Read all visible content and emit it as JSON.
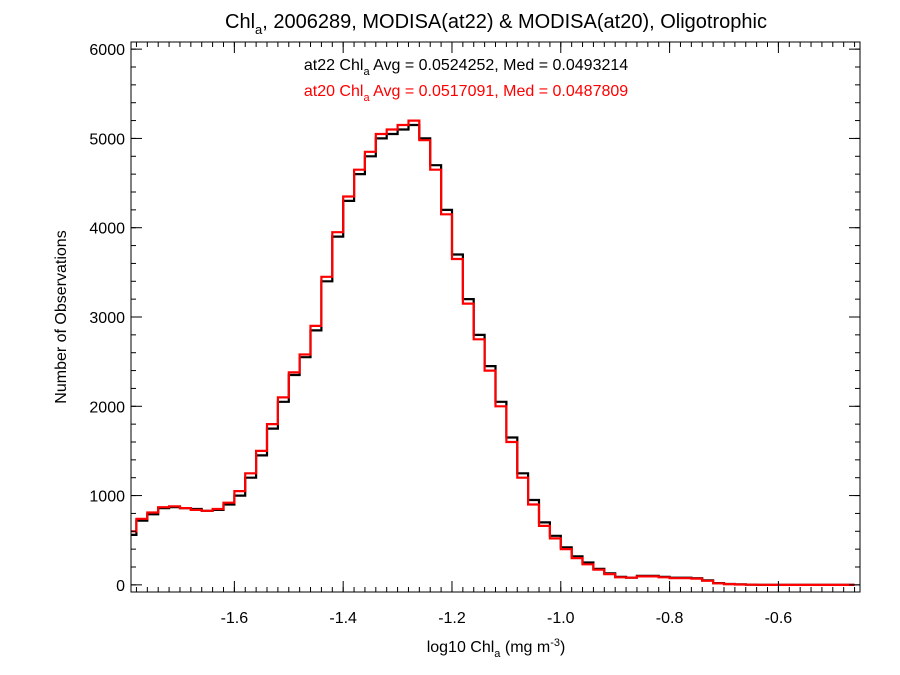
{
  "chart_data": {
    "type": "line",
    "step": true,
    "title": {
      "pre": "Chl",
      "sub": "a",
      "post": ", 2006289, MODISA(at22) & MODISA(at20), Oligotrophic"
    },
    "xlabel": {
      "pre": "log10 Chl",
      "sub": "a",
      "mid": " (mg m",
      "sup": "-3",
      "post": ")"
    },
    "ylabel": "Number of Observations",
    "xlim": [
      -1.79,
      -0.45
    ],
    "ylim": [
      -80,
      6080
    ],
    "xticks": [
      -1.6,
      -1.4,
      -1.2,
      -1.0,
      -0.8,
      -0.6
    ],
    "xtick_labels": [
      "-1.6",
      "-1.4",
      "-1.2",
      "-1.0",
      "-0.8",
      "-0.6"
    ],
    "yticks": [
      0,
      1000,
      2000,
      3000,
      4000,
      5000,
      6000
    ],
    "ytick_labels": [
      "0",
      "1000",
      "2000",
      "3000",
      "4000",
      "5000",
      "6000"
    ],
    "x_minor_step": 0.02,
    "y_minor_step": 200,
    "grid": false,
    "annotations": [
      {
        "pre": "at22 Chl",
        "sub": "a",
        "post": " Avg = 0.0524252, Med = 0.0493214",
        "color": "#000000"
      },
      {
        "pre": "at20 Chl",
        "sub": "a",
        "post": " Avg = 0.0517091, Med = 0.0487809",
        "color": "#ff0000"
      }
    ],
    "series": [
      {
        "color": "#000000",
        "points": [
          [
            -1.79,
            560
          ],
          [
            -1.77,
            720
          ],
          [
            -1.75,
            790
          ],
          [
            -1.73,
            860
          ],
          [
            -1.71,
            870
          ],
          [
            -1.69,
            860
          ],
          [
            -1.67,
            850
          ],
          [
            -1.65,
            830
          ],
          [
            -1.63,
            840
          ],
          [
            -1.61,
            900
          ],
          [
            -1.59,
            1000
          ],
          [
            -1.57,
            1200
          ],
          [
            -1.55,
            1450
          ],
          [
            -1.53,
            1750
          ],
          [
            -1.51,
            2050
          ],
          [
            -1.49,
            2350
          ],
          [
            -1.47,
            2550
          ],
          [
            -1.45,
            2850
          ],
          [
            -1.43,
            3400
          ],
          [
            -1.41,
            3900
          ],
          [
            -1.39,
            4300
          ],
          [
            -1.37,
            4600
          ],
          [
            -1.35,
            4800
          ],
          [
            -1.33,
            5000
          ],
          [
            -1.31,
            5050
          ],
          [
            -1.29,
            5100
          ],
          [
            -1.27,
            5150
          ],
          [
            -1.25,
            5000
          ],
          [
            -1.23,
            4700
          ],
          [
            -1.21,
            4200
          ],
          [
            -1.19,
            3700
          ],
          [
            -1.17,
            3200
          ],
          [
            -1.15,
            2800
          ],
          [
            -1.13,
            2450
          ],
          [
            -1.11,
            2050
          ],
          [
            -1.09,
            1650
          ],
          [
            -1.07,
            1250
          ],
          [
            -1.05,
            950
          ],
          [
            -1.03,
            700
          ],
          [
            -1.01,
            550
          ],
          [
            -0.99,
            420
          ],
          [
            -0.97,
            320
          ],
          [
            -0.95,
            250
          ],
          [
            -0.93,
            180
          ],
          [
            -0.91,
            130
          ],
          [
            -0.89,
            90
          ],
          [
            -0.87,
            80
          ],
          [
            -0.85,
            100
          ],
          [
            -0.83,
            100
          ],
          [
            -0.81,
            90
          ],
          [
            -0.79,
            80
          ],
          [
            -0.77,
            80
          ],
          [
            -0.75,
            75
          ],
          [
            -0.73,
            50
          ],
          [
            -0.71,
            20
          ],
          [
            -0.69,
            10
          ],
          [
            -0.67,
            5
          ],
          [
            -0.65,
            2
          ],
          [
            -0.63,
            1
          ],
          [
            -0.61,
            0
          ],
          [
            -0.59,
            0
          ],
          [
            -0.57,
            0
          ],
          [
            -0.55,
            0
          ],
          [
            -0.53,
            0
          ],
          [
            -0.51,
            0
          ],
          [
            -0.49,
            0
          ],
          [
            -0.47,
            0
          ]
        ]
      },
      {
        "color": "#ff0000",
        "points": [
          [
            -1.79,
            600
          ],
          [
            -1.77,
            740
          ],
          [
            -1.75,
            810
          ],
          [
            -1.73,
            870
          ],
          [
            -1.71,
            880
          ],
          [
            -1.69,
            860
          ],
          [
            -1.67,
            840
          ],
          [
            -1.65,
            830
          ],
          [
            -1.63,
            850
          ],
          [
            -1.61,
            920
          ],
          [
            -1.59,
            1050
          ],
          [
            -1.57,
            1250
          ],
          [
            -1.55,
            1500
          ],
          [
            -1.53,
            1800
          ],
          [
            -1.51,
            2100
          ],
          [
            -1.49,
            2380
          ],
          [
            -1.47,
            2580
          ],
          [
            -1.45,
            2900
          ],
          [
            -1.43,
            3450
          ],
          [
            -1.41,
            3950
          ],
          [
            -1.39,
            4350
          ],
          [
            -1.37,
            4650
          ],
          [
            -1.35,
            4850
          ],
          [
            -1.33,
            5050
          ],
          [
            -1.31,
            5100
          ],
          [
            -1.29,
            5150
          ],
          [
            -1.27,
            5200
          ],
          [
            -1.25,
            4980
          ],
          [
            -1.23,
            4650
          ],
          [
            -1.21,
            4150
          ],
          [
            -1.19,
            3650
          ],
          [
            -1.17,
            3150
          ],
          [
            -1.15,
            2750
          ],
          [
            -1.13,
            2400
          ],
          [
            -1.11,
            2000
          ],
          [
            -1.09,
            1600
          ],
          [
            -1.07,
            1200
          ],
          [
            -1.05,
            900
          ],
          [
            -1.03,
            660
          ],
          [
            -1.01,
            520
          ],
          [
            -0.99,
            400
          ],
          [
            -0.97,
            300
          ],
          [
            -0.95,
            230
          ],
          [
            -0.93,
            170
          ],
          [
            -0.91,
            120
          ],
          [
            -0.89,
            85
          ],
          [
            -0.87,
            80
          ],
          [
            -0.85,
            95
          ],
          [
            -0.83,
            95
          ],
          [
            -0.81,
            85
          ],
          [
            -0.79,
            75
          ],
          [
            -0.77,
            75
          ],
          [
            -0.75,
            70
          ],
          [
            -0.73,
            45
          ],
          [
            -0.71,
            18
          ],
          [
            -0.69,
            8
          ],
          [
            -0.67,
            4
          ],
          [
            -0.65,
            2
          ],
          [
            -0.63,
            1
          ],
          [
            -0.61,
            0
          ],
          [
            -0.59,
            0
          ],
          [
            -0.57,
            0
          ],
          [
            -0.55,
            0
          ],
          [
            -0.53,
            0
          ],
          [
            -0.51,
            0
          ],
          [
            -0.49,
            0
          ],
          [
            -0.47,
            0
          ]
        ]
      }
    ]
  }
}
